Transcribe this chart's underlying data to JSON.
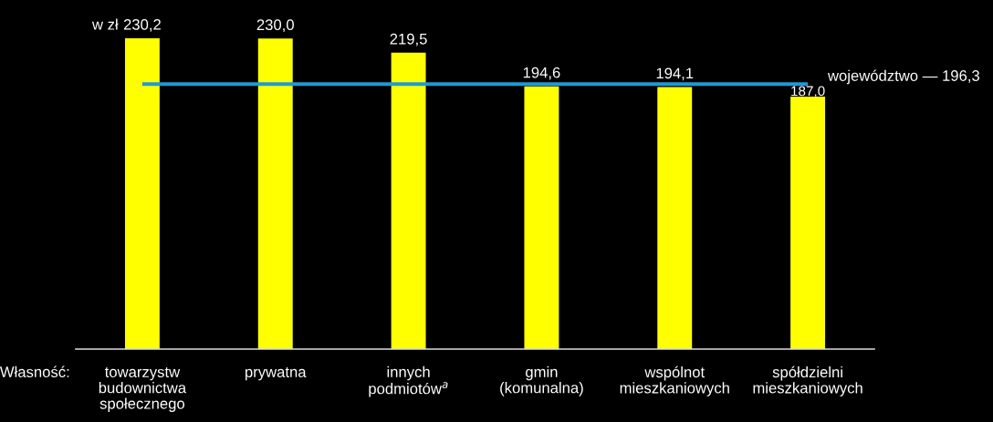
{
  "chart_data": {
    "type": "bar",
    "categories": [
      "towarzystw\nbudownictwa\nspołecznego",
      "prywatna",
      "innych\npodmiotów$^{a}$",
      "gmin\n(komunalna)",
      "wspólnot\nmieszkaniowych",
      "spółdzielni\nmieszkaniowych"
    ],
    "values": [
      230.2,
      230.0,
      219.5,
      194.6,
      194.1,
      187.0
    ],
    "value_labels": [
      "230,2",
      "230,0",
      "219,5",
      "194,6",
      "194,1",
      "187,0"
    ],
    "color": "#ffff00",
    "ylabel": "w zł",
    "xlabel": "Własność:",
    "ref_lines": [
      {
        "axis": "y",
        "value": 196.3,
        "label": "województwo — 196,3",
        "color": "#1e9ad6"
      }
    ],
    "grid": false,
    "legend": false
  }
}
